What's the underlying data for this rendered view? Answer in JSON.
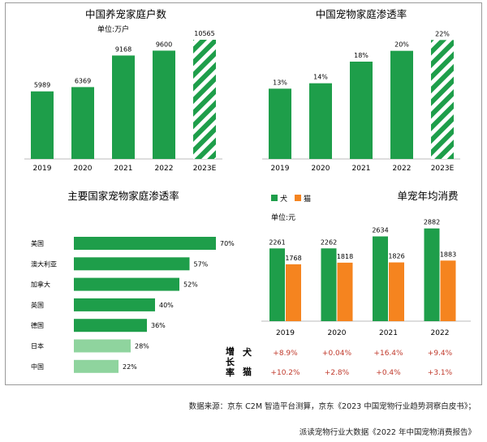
{
  "chart_data": [
    {
      "type": "bar",
      "title": "中国养宠家庭户数",
      "unit": "单位:万户",
      "categories": [
        "2019",
        "2020",
        "2021",
        "2022",
        "2023E"
      ],
      "values": [
        5989,
        6369,
        9168,
        9600,
        10565
      ],
      "value_labels": [
        "5989",
        "6369",
        "9168",
        "9600",
        "10565"
      ],
      "projected": [
        false,
        false,
        false,
        false,
        true
      ],
      "ylim": [
        0,
        11500
      ]
    },
    {
      "type": "bar",
      "title": "中国宠物家庭渗透率",
      "categories": [
        "2019",
        "2020",
        "2021",
        "2022",
        "2023E"
      ],
      "values": [
        13,
        14,
        18,
        20,
        22
      ],
      "value_labels": [
        "13%",
        "14%",
        "18%",
        "20%",
        "22%"
      ],
      "projected": [
        false,
        false,
        false,
        false,
        true
      ],
      "ylim": [
        0,
        24
      ]
    },
    {
      "type": "bar",
      "orientation": "horizontal",
      "title": "主要国家宠物家庭渗透率",
      "categories": [
        "美国",
        "澳大利亚",
        "加拿大",
        "英国",
        "德国",
        "日本",
        "中国"
      ],
      "values": [
        70,
        57,
        52,
        40,
        36,
        28,
        22
      ],
      "value_labels": [
        "70%",
        "57%",
        "52%",
        "40%",
        "36%",
        "28%",
        "22%"
      ],
      "xlim": [
        0,
        70
      ]
    },
    {
      "type": "bar",
      "title": "单宠年均消费",
      "unit": "单位:元",
      "categories": [
        "2019",
        "2020",
        "2021",
        "2022"
      ],
      "series": [
        {
          "name": "犬",
          "values": [
            2261,
            2262,
            2634,
            2882
          ]
        },
        {
          "name": "猫",
          "values": [
            1768,
            1818,
            1826,
            1883
          ]
        }
      ],
      "ylim": [
        0,
        3050
      ],
      "growth_title": [
        "增",
        "长",
        "率"
      ],
      "growth_rows": [
        {
          "label": "犬",
          "values": [
            "+8.9%",
            "+0.04%",
            "+16.4%",
            "+9.4%"
          ]
        },
        {
          "label": "猫",
          "values": [
            "+10.2%",
            "+2.8%",
            "+0.4%",
            "+3.1%"
          ]
        }
      ]
    }
  ],
  "colors": {
    "green": "#1e9e4a",
    "light_green": "#8fd49e",
    "orange": "#f5841f",
    "growth_text": "#c0392b"
  },
  "source": {
    "line1": "数据来源：京东 C2M 智造平台测算，京东《2023 中国宠物行业趋势洞察白皮书》；",
    "line2": "派读宠物行业大数据《2022 年中国宠物消费报告》"
  }
}
